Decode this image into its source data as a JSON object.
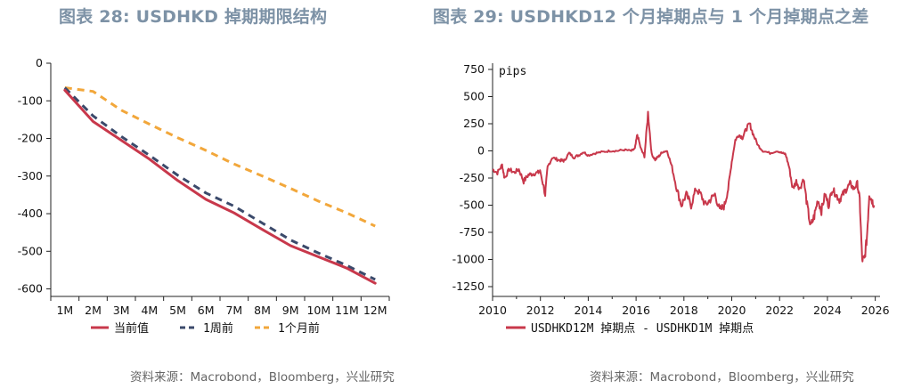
{
  "titles": {
    "left": "图表 28: USDHKD 掉期期限结构",
    "right": "图表 29: USDHKD12 个月掉期点与 1 个月掉期点之差"
  },
  "sources": {
    "left": "资料来源：Macrobond，Bloomberg，兴业研究",
    "right": "资料来源：Macrobond，Bloomberg，兴业研究"
  },
  "chart_data": [
    {
      "type": "line",
      "title": "图表 28: USDHKD 掉期期限结构",
      "categories": [
        "1M",
        "2M",
        "3M",
        "4M",
        "5M",
        "6M",
        "7M",
        "8M",
        "9M",
        "10M",
        "11M",
        "12M"
      ],
      "ylim": [
        -620,
        0
      ],
      "yticks": [
        0,
        -100,
        -200,
        -300,
        -400,
        -500,
        -600
      ],
      "legend_position": "bottom",
      "series": [
        {
          "name": "当前值",
          "color": "#c8384b",
          "style": "solid",
          "values": [
            -72,
            -155,
            -205,
            -255,
            -312,
            -362,
            -398,
            -442,
            -485,
            -515,
            -545,
            -585
          ]
        },
        {
          "name": "1周前",
          "color": "#3b4a6b",
          "style": "dashed",
          "values": [
            -65,
            -140,
            -195,
            -245,
            -298,
            -345,
            -380,
            -425,
            -470,
            -505,
            -538,
            -575
          ]
        },
        {
          "name": "1个月前",
          "color": "#f2a73b",
          "style": "dashed",
          "values": [
            -65,
            -75,
            -125,
            -162,
            -198,
            -232,
            -268,
            -300,
            -333,
            -367,
            -398,
            -433
          ]
        }
      ]
    },
    {
      "type": "line",
      "title": "图表 29: USDHKD12 个月掉期点与 1 个月掉期点之差",
      "ylabel": "pips",
      "xlim": [
        2010,
        2026.2
      ],
      "ylim": [
        -1250,
        750
      ],
      "xticks": [
        2010,
        2012,
        2014,
        2016,
        2018,
        2020,
        2022,
        2024,
        2026
      ],
      "yticks": [
        750,
        500,
        250,
        0,
        -250,
        -500,
        -750,
        -1000,
        -1250
      ],
      "legend_position": "bottom",
      "series": [
        {
          "name": "USDHKD12M 掉期点 - USDHKD1M 掉期点",
          "color": "#c8384b",
          "x": [
            2010.0,
            2010.2,
            2010.4,
            2010.5,
            2010.7,
            2010.9,
            2011.1,
            2011.3,
            2011.5,
            2011.7,
            2011.9,
            2012.0,
            2012.2,
            2012.3,
            2012.5,
            2012.7,
            2012.9,
            2013.0,
            2013.2,
            2013.4,
            2013.6,
            2013.8,
            2014.0,
            2014.3,
            2014.6,
            2014.9,
            2015.2,
            2015.5,
            2015.8,
            2015.95,
            2016.05,
            2016.2,
            2016.35,
            2016.5,
            2016.65,
            2016.8,
            2016.95,
            2017.1,
            2017.3,
            2017.5,
            2017.7,
            2017.9,
            2018.1,
            2018.3,
            2018.5,
            2018.7,
            2018.9,
            2019.1,
            2019.3,
            2019.5,
            2019.7,
            2019.85,
            2020.0,
            2020.15,
            2020.3,
            2020.45,
            2020.6,
            2020.75,
            2020.9,
            2021.1,
            2021.3,
            2021.6,
            2021.9,
            2022.1,
            2022.25,
            2022.4,
            2022.55,
            2022.7,
            2022.85,
            2023.0,
            2023.15,
            2023.3,
            2023.45,
            2023.6,
            2023.75,
            2023.9,
            2024.05,
            2024.2,
            2024.35,
            2024.5,
            2024.65,
            2024.8,
            2024.95,
            2025.1,
            2025.25,
            2025.35,
            2025.45,
            2025.55,
            2025.65,
            2025.75,
            2025.85,
            2025.95
          ],
          "values": [
            -170,
            -200,
            -130,
            -250,
            -170,
            -200,
            -170,
            -280,
            -220,
            -210,
            -200,
            -190,
            -400,
            -150,
            -60,
            -80,
            -90,
            -90,
            -20,
            -60,
            -40,
            -10,
            -40,
            -20,
            -10,
            0,
            0,
            10,
            0,
            20,
            150,
            20,
            -50,
            350,
            -30,
            -80,
            -50,
            -10,
            0,
            -150,
            -350,
            -500,
            -400,
            -500,
            -350,
            -400,
            -500,
            -450,
            -400,
            -550,
            -500,
            -350,
            -100,
            100,
            150,
            120,
            200,
            250,
            150,
            50,
            0,
            -20,
            0,
            -20,
            -30,
            -150,
            -350,
            -280,
            -350,
            -250,
            -500,
            -700,
            -600,
            -450,
            -550,
            -400,
            -500,
            -350,
            -400,
            -450,
            -400,
            -350,
            -300,
            -350,
            -300,
            -450,
            -1000,
            -1000,
            -800,
            -400,
            -450,
            -500
          ]
        }
      ]
    }
  ]
}
